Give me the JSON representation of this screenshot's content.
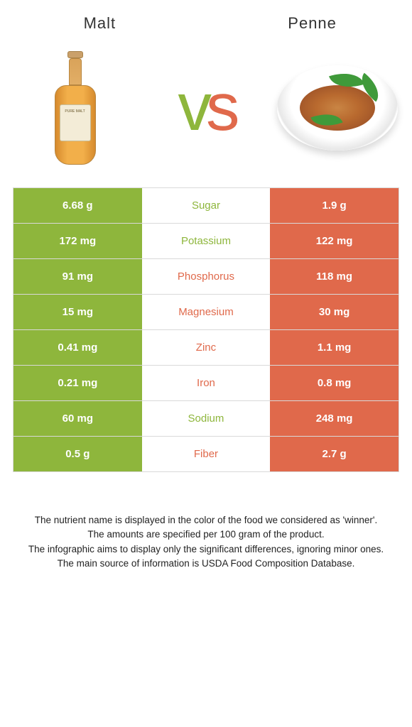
{
  "titles": {
    "left": "Malt",
    "right": "Penne"
  },
  "vs_text": "vs",
  "colors": {
    "malt": "#8eb63c",
    "penne": "#e0694b",
    "vs_v": "#8eb63c",
    "vs_s": "#e0694b",
    "border": "#d9d9d9",
    "bg": "#ffffff",
    "text": "#333333"
  },
  "bottle_label": "PURE MALT",
  "rows": [
    {
      "nutrient": "Sugar",
      "left": "6.68 g",
      "right": "1.9 g",
      "winner": "malt"
    },
    {
      "nutrient": "Potassium",
      "left": "172 mg",
      "right": "122 mg",
      "winner": "malt"
    },
    {
      "nutrient": "Phosphorus",
      "left": "91 mg",
      "right": "118 mg",
      "winner": "penne"
    },
    {
      "nutrient": "Magnesium",
      "left": "15 mg",
      "right": "30 mg",
      "winner": "penne"
    },
    {
      "nutrient": "Zinc",
      "left": "0.41 mg",
      "right": "1.1 mg",
      "winner": "penne"
    },
    {
      "nutrient": "Iron",
      "left": "0.21 mg",
      "right": "0.8 mg",
      "winner": "penne"
    },
    {
      "nutrient": "Sodium",
      "left": "60 mg",
      "right": "248 mg",
      "winner": "malt"
    },
    {
      "nutrient": "Fiber",
      "left": "0.5 g",
      "right": "2.7 g",
      "winner": "penne"
    }
  ],
  "footer": [
    "The nutrient name is displayed in the color of the food we considered as 'winner'.",
    "The amounts are specified per 100 gram of the product.",
    "The infographic aims to display only the significant differences, ignoring minor ones.",
    "The main source of information is USDA Food Composition Database."
  ]
}
